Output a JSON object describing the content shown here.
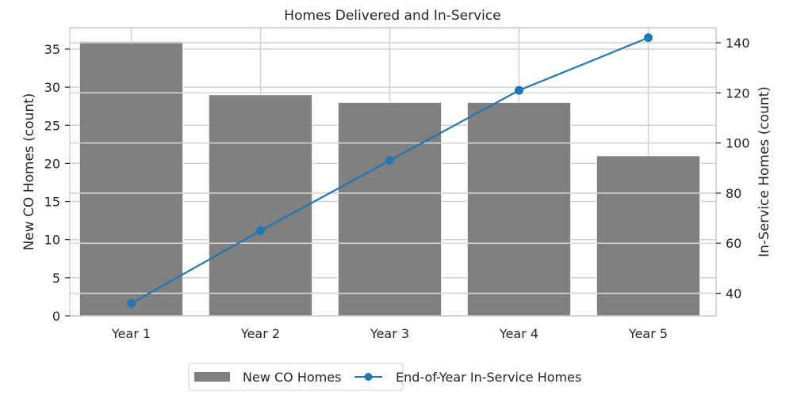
{
  "chart_data": {
    "type": "bar+line",
    "title": "Homes Delivered and In-Service",
    "categories": [
      "Year 1",
      "Year 2",
      "Year 3",
      "Year 4",
      "Year 5"
    ],
    "xlabel": "",
    "ylabel_left": "New CO Homes (count)",
    "ylabel_right": "In-Service Homes (count)",
    "ylim_left": [
      0,
      37.8
    ],
    "ylim_right": [
      31,
      146
    ],
    "yticks_left": [
      0,
      5,
      10,
      15,
      20,
      25,
      30,
      35
    ],
    "yticks_right": [
      40,
      60,
      80,
      100,
      120,
      140
    ],
    "grid": true,
    "legend_position": "bottom-center",
    "series": [
      {
        "name": "New CO Homes",
        "type": "bar",
        "axis": "left",
        "color": "#808080",
        "values": [
          36,
          29,
          28,
          28,
          21
        ]
      },
      {
        "name": "End-of-Year In-Service Homes",
        "type": "line",
        "axis": "right",
        "color": "#1f77b4",
        "marker": "circle",
        "values": [
          36,
          65,
          93,
          121,
          142
        ]
      }
    ]
  },
  "colors": {
    "bar": "#808080",
    "line": "#1f77b4",
    "grid": "#d0d0d0",
    "spine": "#cccccc"
  }
}
